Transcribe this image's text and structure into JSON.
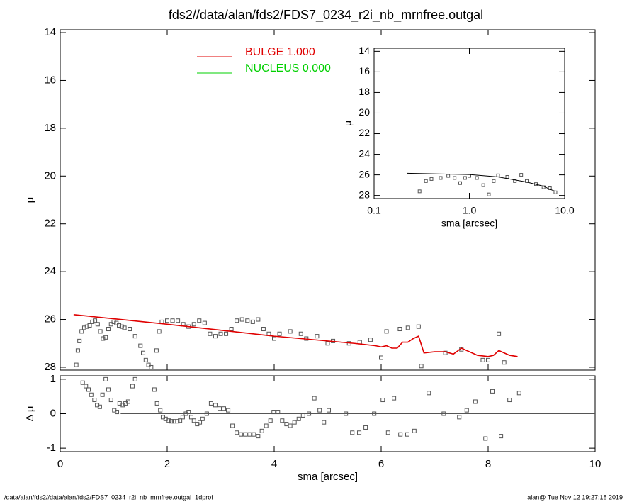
{
  "footer_left": "/data/alan/fds2//data/alan/fds2/FDS7_0234_r2i_nb_mrnfree.outgal_1dprof",
  "footer_right": "alan@  Tue Nov 12 19:27:18 2019",
  "chart_data": [
    {
      "type": "scatter",
      "title": "fds2//data/alan/fds2/FDS7_0234_r2i_nb_mrnfree.outgal",
      "ylabel": "μ",
      "xlim": [
        0,
        10
      ],
      "xticks": [
        0,
        2,
        4,
        6,
        8,
        10
      ],
      "ylim": [
        28.12,
        13.88
      ],
      "yticks": [
        14,
        16,
        18,
        20,
        22,
        24,
        26,
        28
      ],
      "legend": [
        {
          "label": "BULGE  1.000",
          "color": "#e00000"
        },
        {
          "label": "NUCLEUS  0.000",
          "color": "#00d000"
        }
      ],
      "series": [
        {
          "mode": "markers",
          "color": "#555555",
          "x": [
            0.3,
            0.33,
            0.36,
            0.4,
            0.45,
            0.5,
            0.55,
            0.6,
            0.65,
            0.7,
            0.75,
            0.8,
            0.85,
            0.9,
            0.95,
            1.0,
            1.05,
            1.1,
            1.15,
            1.2,
            1.3,
            1.4,
            1.5,
            1.55,
            1.6,
            1.65,
            1.7,
            1.8,
            1.85,
            1.9,
            2.0,
            2.1,
            2.2,
            2.3,
            2.4,
            2.5,
            2.6,
            2.7,
            2.8,
            2.9,
            3.0,
            3.1,
            3.2,
            3.3,
            3.4,
            3.5,
            3.6,
            3.7,
            3.8,
            3.9,
            4.0,
            4.1,
            4.3,
            4.5,
            4.6,
            4.8,
            5.0,
            5.1,
            5.4,
            5.6,
            5.8,
            6.0,
            6.1,
            6.35,
            6.5,
            6.7,
            6.75,
            7.2,
            7.5,
            7.9,
            8.0,
            8.2,
            8.3
          ],
          "values": [
            27.9,
            27.3,
            26.9,
            26.5,
            26.35,
            26.3,
            26.25,
            26.1,
            26.05,
            26.2,
            26.5,
            26.8,
            26.75,
            26.4,
            26.2,
            26.1,
            26.15,
            26.25,
            26.3,
            26.35,
            26.4,
            26.7,
            27.1,
            27.4,
            27.7,
            27.9,
            28.0,
            27.3,
            26.5,
            26.1,
            26.05,
            26.05,
            26.05,
            26.2,
            26.3,
            26.2,
            26.05,
            26.15,
            26.6,
            26.7,
            26.6,
            26.6,
            26.4,
            26.05,
            26.0,
            26.05,
            26.1,
            26.0,
            26.4,
            26.6,
            26.8,
            26.6,
            26.5,
            26.6,
            26.8,
            26.7,
            27.0,
            26.9,
            27.0,
            26.95,
            26.85,
            27.6,
            26.5,
            26.4,
            26.35,
            26.3,
            27.95,
            27.4,
            27.25,
            27.7,
            27.7,
            26.6,
            27.8
          ]
        },
        {
          "mode": "line",
          "color": "#e00000",
          "x": [
            0.25,
            1,
            2,
            3,
            4,
            5,
            5.5,
            5.9,
            6.0,
            6.1,
            6.2,
            6.3,
            6.4,
            6.5,
            6.6,
            6.7,
            6.8,
            7.0,
            7.2,
            7.35,
            7.5,
            7.6,
            7.8,
            8.0,
            8.1,
            8.2,
            8.4,
            8.55
          ],
          "values": [
            25.8,
            25.97,
            26.2,
            26.45,
            26.7,
            26.9,
            27.0,
            27.1,
            27.15,
            27.1,
            27.2,
            27.2,
            26.95,
            26.95,
            26.8,
            26.7,
            27.4,
            27.35,
            27.35,
            27.45,
            27.2,
            27.3,
            27.5,
            27.55,
            27.5,
            27.3,
            27.5,
            27.55
          ]
        }
      ]
    },
    {
      "type": "scatter",
      "xlabel": "sma [arcsec]",
      "ylabel": "Δ μ",
      "xlim": [
        0,
        10
      ],
      "xticks": [
        0,
        2,
        4,
        6,
        8,
        10
      ],
      "ylim": [
        -1.1,
        1.1
      ],
      "yticks": [
        -1,
        0,
        1
      ],
      "series": [
        {
          "mode": "markers",
          "color": "#555555",
          "x": [
            0.42,
            0.48,
            0.53,
            0.58,
            0.64,
            0.69,
            0.74,
            0.79,
            0.85,
            0.9,
            0.95,
            1.01,
            1.06,
            1.11,
            1.17,
            1.22,
            1.27,
            1.35,
            1.4,
            1.76,
            1.81,
            1.87,
            1.92,
            1.97,
            2.03,
            2.08,
            2.13,
            2.19,
            2.24,
            2.29,
            2.35,
            2.4,
            2.45,
            2.5,
            2.56,
            2.61,
            2.66,
            2.74,
            2.82,
            2.9,
            2.98,
            3.06,
            3.14,
            3.22,
            3.3,
            3.38,
            3.46,
            3.54,
            3.62,
            3.7,
            3.77,
            3.85,
            3.93,
            3.99,
            4.07,
            4.15,
            4.23,
            4.3,
            4.38,
            4.46,
            4.54,
            4.65,
            4.75,
            4.85,
            4.93,
            5.02,
            5.34,
            5.46,
            5.59,
            5.71,
            5.87,
            6.03,
            6.13,
            6.24,
            6.36,
            6.49,
            6.62,
            6.89,
            7.17,
            7.46,
            7.6,
            7.76,
            7.95,
            8.08,
            8.24,
            8.4,
            8.58
          ],
          "values": [
            0.9,
            0.8,
            0.7,
            0.55,
            0.4,
            0.25,
            0.2,
            0.55,
            1.0,
            0.7,
            0.4,
            0.1,
            0.05,
            0.3,
            0.25,
            0.3,
            0.35,
            0.8,
            1.0,
            0.7,
            0.3,
            0.1,
            -0.1,
            -0.15,
            -0.2,
            -0.22,
            -0.22,
            -0.22,
            -0.2,
            -0.1,
            0.0,
            0.05,
            -0.1,
            -0.2,
            -0.3,
            -0.25,
            -0.15,
            0.0,
            0.3,
            0.25,
            0.15,
            0.15,
            0.1,
            -0.35,
            -0.55,
            -0.6,
            -0.6,
            -0.6,
            -0.6,
            -0.65,
            -0.5,
            -0.35,
            -0.2,
            0.05,
            0.05,
            -0.2,
            -0.3,
            -0.35,
            -0.25,
            -0.15,
            -0.05,
            0.0,
            0.45,
            0.1,
            -0.25,
            0.1,
            0.0,
            -0.55,
            -0.55,
            -0.4,
            0.0,
            0.4,
            -0.55,
            0.45,
            -0.6,
            -0.6,
            -0.5,
            0.6,
            0.0,
            -0.1,
            0.1,
            0.35,
            -0.72,
            0.65,
            -0.65,
            0.4,
            0.6
          ]
        },
        {
          "mode": "line",
          "color": "#555555",
          "x": [
            1.13,
            10
          ],
          "values": [
            0,
            0
          ]
        }
      ]
    },
    {
      "type": "scatter",
      "xlabel": "sma [arcsec]",
      "ylabel": "μ",
      "log_x": true,
      "xlim": [
        0.1,
        10
      ],
      "xticks": [
        0.1,
        {
          "value": 1,
          "label": "1.0"
        },
        {
          "value": 10,
          "label": "10.0"
        }
      ],
      "ylim": [
        28.3,
        13.7
      ],
      "yticks": [
        14,
        16,
        18,
        20,
        22,
        24,
        26,
        28
      ],
      "series": [
        {
          "mode": "markers",
          "color": "#555555",
          "x": [
            0.3,
            0.35,
            0.4,
            0.5,
            0.6,
            0.7,
            0.8,
            0.9,
            1.0,
            1.2,
            1.4,
            1.6,
            1.8,
            2.0,
            2.5,
            3.0,
            3.5,
            4.0,
            5.0,
            6.0,
            7.0,
            8.0
          ],
          "values": [
            27.6,
            26.6,
            26.4,
            26.3,
            26.1,
            26.3,
            26.8,
            26.3,
            26.1,
            26.3,
            27.0,
            27.9,
            26.6,
            26.05,
            26.2,
            26.6,
            26.0,
            26.6,
            26.9,
            27.2,
            27.3,
            27.7
          ]
        },
        {
          "mode": "line",
          "color": "#000000",
          "x": [
            0.22,
            1,
            2,
            4,
            6,
            7,
            8
          ],
          "values": [
            25.85,
            25.97,
            26.2,
            26.7,
            27.1,
            27.4,
            27.6
          ]
        }
      ]
    }
  ]
}
